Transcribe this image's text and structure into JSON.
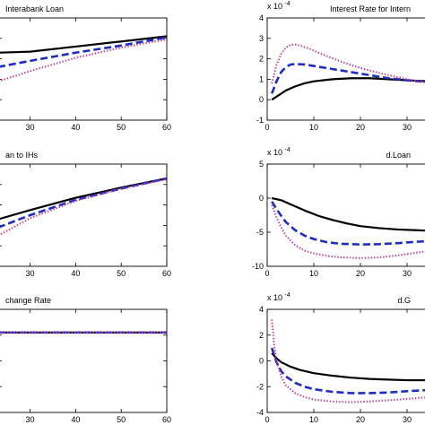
{
  "figure": {
    "background": "#ffffff"
  },
  "chart_data": [
    {
      "id": "p1",
      "type": "line",
      "title": "Interabank Loan",
      "xlim": [
        23,
        60
      ],
      "ylim": [
        0,
        1
      ],
      "x_ticks": [
        30,
        40,
        50,
        60
      ],
      "x_tick_labels": [
        "30",
        "40",
        "50",
        "60"
      ],
      "y_ticks": [
        0.2,
        0.4,
        0.6,
        0.8
      ],
      "y_tick_labels": [],
      "exponent_label": "",
      "series": [
        {
          "style": "solid",
          "color": "#000000",
          "x": [
            23,
            30,
            40,
            50,
            60
          ],
          "y": [
            0.66,
            0.67,
            0.72,
            0.77,
            0.82
          ]
        },
        {
          "style": "dashed",
          "color": "#1f2bc8",
          "x": [
            23,
            30,
            40,
            50,
            60
          ],
          "y": [
            0.52,
            0.58,
            0.66,
            0.73,
            0.81
          ]
        },
        {
          "style": "dotted",
          "color": "#c0399a",
          "x": [
            23,
            30,
            40,
            50,
            60
          ],
          "y": [
            0.38,
            0.48,
            0.61,
            0.71,
            0.79
          ]
        }
      ]
    },
    {
      "id": "p2",
      "type": "line",
      "title": "Interest Rate for Intern",
      "xlim": [
        0,
        35
      ],
      "ylim": [
        -1,
        4
      ],
      "x_ticks": [
        0,
        10,
        20,
        30
      ],
      "x_tick_labels": [
        "0",
        "10",
        "20",
        "30"
      ],
      "y_ticks": [
        -1,
        0,
        1,
        2,
        3,
        4
      ],
      "y_tick_labels": [
        "-1",
        "0",
        "1",
        "2",
        "3",
        "4"
      ],
      "exponent_label": "x 10",
      "exponent_power": "-4",
      "series": [
        {
          "style": "solid",
          "color": "#000000",
          "x": [
            1,
            2,
            3,
            4,
            6,
            8,
            10,
            14,
            18,
            22,
            26,
            30,
            35
          ],
          "y": [
            0.0,
            0.15,
            0.3,
            0.45,
            0.65,
            0.8,
            0.9,
            1.0,
            1.05,
            1.05,
            1.0,
            0.95,
            0.9
          ]
        },
        {
          "style": "dashed",
          "color": "#1f2bc8",
          "x": [
            1,
            2,
            3,
            4,
            5,
            6,
            8,
            10,
            14,
            18,
            22,
            26,
            30,
            35
          ],
          "y": [
            0.3,
            0.9,
            1.35,
            1.6,
            1.72,
            1.75,
            1.72,
            1.65,
            1.5,
            1.35,
            1.2,
            1.05,
            0.95,
            0.85
          ]
        },
        {
          "style": "dotted",
          "color": "#c0399a",
          "x": [
            1,
            2,
            3,
            4,
            5,
            6,
            7,
            9,
            12,
            16,
            20,
            25,
            30,
            35
          ],
          "y": [
            0.8,
            1.7,
            2.25,
            2.55,
            2.68,
            2.7,
            2.65,
            2.5,
            2.2,
            1.85,
            1.55,
            1.25,
            1.0,
            0.8
          ]
        }
      ]
    },
    {
      "id": "p3",
      "type": "line",
      "title": "an to IHs",
      "xlim": [
        23,
        60
      ],
      "ylim": [
        0,
        1
      ],
      "x_ticks": [
        30,
        40,
        50,
        60
      ],
      "x_tick_labels": [
        "30",
        "40",
        "50",
        "60"
      ],
      "y_ticks": [
        0.2,
        0.4,
        0.6,
        0.8
      ],
      "y_tick_labels": [],
      "exponent_label": "",
      "series": [
        {
          "style": "solid",
          "color": "#000000",
          "x": [
            23,
            30,
            40,
            50,
            60
          ],
          "y": [
            0.46,
            0.55,
            0.67,
            0.77,
            0.86
          ]
        },
        {
          "style": "dashed",
          "color": "#1f2bc8",
          "x": [
            23,
            30,
            40,
            50,
            60
          ],
          "y": [
            0.38,
            0.5,
            0.65,
            0.76,
            0.86
          ]
        },
        {
          "style": "dotted",
          "color": "#c0399a",
          "x": [
            23,
            30,
            40,
            50,
            60
          ],
          "y": [
            0.3,
            0.47,
            0.64,
            0.76,
            0.85
          ]
        }
      ]
    },
    {
      "id": "p4",
      "type": "line",
      "title": "d.Loan",
      "xlim": [
        0,
        35
      ],
      "ylim": [
        -10,
        5
      ],
      "x_ticks": [
        0,
        10,
        20,
        30
      ],
      "x_tick_labels": [
        "0",
        "10",
        "20",
        "30"
      ],
      "y_ticks": [
        -10,
        -5,
        0,
        5
      ],
      "y_tick_labels": [
        "-10",
        "-5",
        "0",
        "5"
      ],
      "exponent_label": "x 10",
      "exponent_power": "-4",
      "series": [
        {
          "style": "solid",
          "color": "#000000",
          "x": [
            1,
            3,
            5,
            8,
            11,
            14,
            17,
            20,
            24,
            28,
            32,
            35
          ],
          "y": [
            0.0,
            -0.3,
            -0.9,
            -1.8,
            -2.6,
            -3.2,
            -3.7,
            -4.1,
            -4.4,
            -4.6,
            -4.7,
            -4.8
          ]
        },
        {
          "style": "dashed",
          "color": "#1f2bc8",
          "x": [
            1,
            2,
            3,
            4,
            6,
            8,
            10,
            13,
            16,
            20,
            24,
            28,
            32,
            35
          ],
          "y": [
            -0.5,
            -1.6,
            -2.6,
            -3.5,
            -4.7,
            -5.5,
            -6.0,
            -6.5,
            -6.7,
            -6.8,
            -6.75,
            -6.6,
            -6.4,
            -6.3
          ]
        },
        {
          "style": "dotted",
          "color": "#c0399a",
          "x": [
            1,
            2,
            3,
            4,
            6,
            8,
            10,
            13,
            16,
            20,
            24,
            28,
            32,
            35
          ],
          "y": [
            -1.0,
            -2.8,
            -4.3,
            -5.5,
            -6.9,
            -7.7,
            -8.1,
            -8.5,
            -8.7,
            -8.8,
            -8.7,
            -8.4,
            -8.0,
            -7.7
          ]
        }
      ]
    },
    {
      "id": "p5",
      "type": "line",
      "title": "change Rate",
      "xlim": [
        23,
        60
      ],
      "ylim": [
        -1,
        1
      ],
      "x_ticks": [
        30,
        40,
        50,
        60
      ],
      "x_tick_labels": [
        "30",
        "40",
        "50",
        "60"
      ],
      "y_ticks": [
        -0.5,
        0,
        0.5
      ],
      "y_tick_labels": [],
      "exponent_label": "",
      "series": [
        {
          "style": "solid",
          "color": "#000000",
          "x": [
            23,
            60
          ],
          "y": [
            0.55,
            0.55
          ]
        },
        {
          "style": "dashed",
          "color": "#1f2bc8",
          "x": [
            23,
            60
          ],
          "y": [
            0.55,
            0.55
          ]
        },
        {
          "style": "dotted",
          "color": "#c0399a",
          "x": [
            23,
            60
          ],
          "y": [
            0.55,
            0.55
          ]
        }
      ]
    },
    {
      "id": "p6",
      "type": "line",
      "title": "d.G",
      "xlim": [
        0,
        35
      ],
      "ylim": [
        -4,
        4
      ],
      "x_ticks": [
        0,
        10,
        20,
        30
      ],
      "x_tick_labels": [
        "0",
        "10",
        "20",
        "30"
      ],
      "y_ticks": [
        -4,
        -2,
        0,
        2,
        4
      ],
      "y_tick_labels": [
        "-4",
        "-2",
        "0",
        "2",
        "4"
      ],
      "exponent_label": "x 10",
      "exponent_power": "-4",
      "series": [
        {
          "style": "solid",
          "color": "#000000",
          "x": [
            1,
            2,
            3,
            5,
            7,
            10,
            14,
            18,
            22,
            26,
            30,
            35
          ],
          "y": [
            0.6,
            0.2,
            -0.1,
            -0.45,
            -0.7,
            -0.95,
            -1.15,
            -1.3,
            -1.4,
            -1.45,
            -1.5,
            -1.5
          ]
        },
        {
          "style": "dashed",
          "color": "#1f2bc8",
          "x": [
            1,
            2,
            3,
            4,
            6,
            8,
            10,
            14,
            18,
            22,
            26,
            30,
            35
          ],
          "y": [
            1.0,
            -0.1,
            -0.8,
            -1.2,
            -1.7,
            -2.0,
            -2.2,
            -2.4,
            -2.5,
            -2.5,
            -2.45,
            -2.35,
            -2.25
          ]
        },
        {
          "style": "dotted",
          "color": "#c0399a",
          "x": [
            1,
            1.5,
            2,
            3,
            4,
            6,
            8,
            10,
            14,
            18,
            22,
            26,
            30,
            35
          ],
          "y": [
            3.2,
            1.2,
            0.0,
            -1.2,
            -1.9,
            -2.5,
            -2.8,
            -3.0,
            -3.15,
            -3.2,
            -3.15,
            -3.05,
            -2.95,
            -2.8
          ]
        }
      ]
    }
  ]
}
